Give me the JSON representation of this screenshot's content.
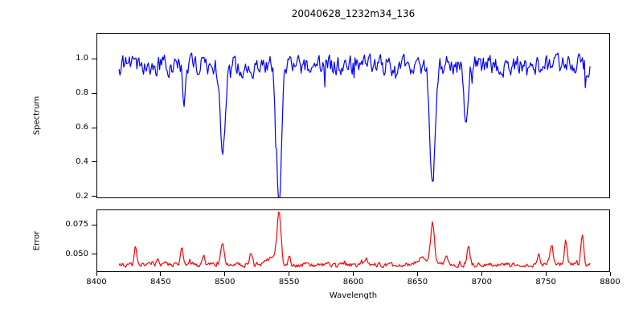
{
  "figure": {
    "title": "20040628_1232m34_136"
  },
  "chart_data": [
    {
      "type": "line",
      "name": "spectrum",
      "title": "20040628_1232m34_136",
      "ylabel": "Spectrum",
      "color": "#0000ff",
      "xlim": [
        8400,
        8800
      ],
      "ylim": [
        0.19,
        1.15
      ],
      "yticks": [
        {
          "v": 0.2,
          "label": "0.2"
        },
        {
          "v": 0.4,
          "label": "0.4"
        },
        {
          "v": 0.6,
          "label": "0.6"
        },
        {
          "v": 0.8,
          "label": "0.8"
        },
        {
          "v": 1.0,
          "label": "1.0"
        }
      ],
      "x_range": [
        8417,
        8785
      ],
      "n_points": 500,
      "continuum": 0.965,
      "noise": {
        "amplitude": 0.05,
        "smooth": 0.45,
        "dip_prob": 0.02,
        "dip_scale": 0.08,
        "seed": 11
      },
      "absorption_lines": [
        {
          "center": 8468,
          "min": 0.74,
          "sigma": 1.2
        },
        {
          "center": 8498,
          "min": 0.37,
          "sigma": 1.8
        },
        {
          "center": 8542,
          "min": 0.195,
          "sigma": 2.0
        },
        {
          "center": 8662,
          "min": 0.24,
          "sigma": 2.0
        },
        {
          "center": 8688,
          "min": 0.65,
          "sigma": 1.5
        }
      ],
      "grid": false,
      "legend": null
    },
    {
      "type": "line",
      "name": "error",
      "ylabel": "Error",
      "xlabel": "Wavelength",
      "color": "#ff0000",
      "xlim": [
        8400,
        8800
      ],
      "ylim": [
        0.035,
        0.088
      ],
      "yticks": [
        {
          "v": 0.05,
          "label": "0.050"
        },
        {
          "v": 0.075,
          "label": "0.075"
        }
      ],
      "xticks": [
        {
          "v": 8400,
          "label": "8400"
        },
        {
          "v": 8450,
          "label": "8450"
        },
        {
          "v": 8500,
          "label": "8500"
        },
        {
          "v": 8550,
          "label": "8550"
        },
        {
          "v": 8600,
          "label": "8600"
        },
        {
          "v": 8650,
          "label": "8650"
        },
        {
          "v": 8700,
          "label": "8700"
        },
        {
          "v": 8750,
          "label": "8750"
        },
        {
          "v": 8800,
          "label": "8800"
        }
      ],
      "x_range": [
        8417,
        8785
      ],
      "n_points": 500,
      "baseline": 0.0405,
      "noise": {
        "amplitude": 0.0018,
        "smooth": 0.4,
        "spike_prob": 0.04,
        "spike_scale": 0.003,
        "seed": 7
      },
      "peaks": [
        {
          "center": 8430,
          "max": 0.056,
          "sigma": 1.0
        },
        {
          "center": 8447,
          "max": 0.047,
          "sigma": 0.9
        },
        {
          "center": 8466,
          "max": 0.057,
          "sigma": 1.1
        },
        {
          "center": 8483,
          "max": 0.048,
          "sigma": 0.9
        },
        {
          "center": 8498,
          "max": 0.06,
          "sigma": 1.3
        },
        {
          "center": 8520,
          "max": 0.05,
          "sigma": 1.0
        },
        {
          "center": 8536,
          "max": 0.046,
          "sigma": 4.0
        },
        {
          "center": 8542,
          "max": 0.086,
          "sigma": 1.5
        },
        {
          "center": 8550,
          "max": 0.049,
          "sigma": 0.9
        },
        {
          "center": 8610,
          "max": 0.045,
          "sigma": 1.0
        },
        {
          "center": 8655,
          "max": 0.047,
          "sigma": 4.0
        },
        {
          "center": 8662,
          "max": 0.075,
          "sigma": 1.5
        },
        {
          "center": 8673,
          "max": 0.048,
          "sigma": 1.0
        },
        {
          "center": 8690,
          "max": 0.056,
          "sigma": 1.2
        },
        {
          "center": 8745,
          "max": 0.05,
          "sigma": 1.0
        },
        {
          "center": 8755,
          "max": 0.058,
          "sigma": 1.1
        },
        {
          "center": 8766,
          "max": 0.062,
          "sigma": 1.1
        },
        {
          "center": 8779,
          "max": 0.066,
          "sigma": 1.1
        }
      ],
      "grid": false,
      "legend": null
    }
  ]
}
